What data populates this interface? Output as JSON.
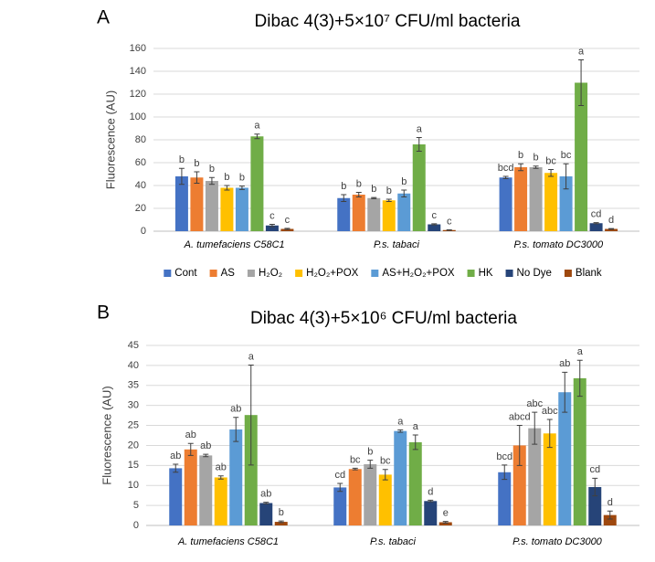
{
  "chart_data": [
    {
      "type": "bar",
      "panel_label": "A",
      "title": "Dibac 4(3)+5×10⁷ CFU/ml bacteria",
      "y_label": "Fluorescence (AU)",
      "categories": [
        "A. tumefaciens C58C1",
        "P.s. tabaci",
        "P.s. tomato DC3000"
      ],
      "ylim": [
        0,
        160
      ],
      "yticks": [
        0,
        20,
        40,
        60,
        80,
        100,
        120,
        140,
        160
      ],
      "grid": true,
      "legend": "bottom",
      "series": [
        {
          "name": "Cont",
          "color": "#4472c4",
          "values": [
            48,
            29,
            47
          ],
          "errors": [
            7,
            3,
            1
          ],
          "letters": [
            "b",
            "b",
            "bcd"
          ]
        },
        {
          "name": "AS",
          "color": "#ed7d31",
          "values": [
            47,
            32,
            56
          ],
          "errors": [
            5,
            2,
            3
          ],
          "letters": [
            "b",
            "b",
            "b"
          ]
        },
        {
          "name": "H₂O₂",
          "color": "#a5a5a5",
          "values": [
            44,
            29,
            56
          ],
          "errors": [
            3,
            0.5,
            1
          ],
          "letters": [
            "b",
            "b",
            "b"
          ]
        },
        {
          "name": "H₂O₂+POX",
          "color": "#ffc000",
          "values": [
            38,
            27,
            51
          ],
          "errors": [
            2,
            1,
            3
          ],
          "letters": [
            "b",
            "b",
            "bc"
          ]
        },
        {
          "name": "AS+H₂O₂+POX",
          "color": "#5b9bd5",
          "values": [
            38,
            33,
            48
          ],
          "errors": [
            1.5,
            3,
            11
          ],
          "letters": [
            "b",
            "b",
            "bc"
          ]
        },
        {
          "name": "HK",
          "color": "#70ad47",
          "values": [
            83,
            76,
            130
          ],
          "errors": [
            2,
            6,
            20
          ],
          "letters": [
            "a",
            "a",
            "a"
          ]
        },
        {
          "name": "No Dye",
          "color": "#264478",
          "values": [
            5,
            6,
            7
          ],
          "errors": [
            1,
            0.5,
            0.5
          ],
          "letters": [
            "c",
            "c",
            "cd"
          ]
        },
        {
          "name": "Blank",
          "color": "#9e480e",
          "values": [
            2,
            1,
            2
          ],
          "errors": [
            0.5,
            0.2,
            0.3
          ],
          "letters": [
            "c",
            "c",
            "d"
          ]
        }
      ]
    },
    {
      "type": "bar",
      "panel_label": "B",
      "title": "Dibac 4(3)+5×10⁶ CFU/ml bacteria",
      "y_label": "Fluorescence (AU)",
      "categories": [
        "A. tumefaciens C58C1",
        "P.s. tabaci",
        "P.s. tomato DC3000"
      ],
      "ylim": [
        0,
        45
      ],
      "yticks": [
        0,
        5,
        10,
        15,
        20,
        25,
        30,
        35,
        40,
        45
      ],
      "grid": true,
      "series": [
        {
          "color": "#4472c4",
          "values": [
            14.3,
            9.5,
            13.3
          ],
          "errors": [
            1,
            1,
            1.8
          ],
          "letters": [
            "ab",
            "cd",
            "bcd"
          ]
        },
        {
          "color": "#ed7d31",
          "values": [
            19,
            14.1,
            20
          ],
          "errors": [
            1.5,
            0.2,
            5
          ],
          "letters": [
            "ab",
            "bc",
            "abcd"
          ]
        },
        {
          "color": "#a5a5a5",
          "values": [
            17.5,
            15.3,
            24.3
          ],
          "errors": [
            0.3,
            1,
            4
          ],
          "letters": [
            "ab",
            "b",
            "abc"
          ]
        },
        {
          "color": "#ffc000",
          "values": [
            12,
            12.7,
            23
          ],
          "errors": [
            0.4,
            1.3,
            3.5
          ],
          "letters": [
            "ab",
            "bc",
            "abc"
          ]
        },
        {
          "color": "#5b9bd5",
          "values": [
            24,
            23.6,
            33.3
          ],
          "errors": [
            3,
            0.3,
            5
          ],
          "letters": [
            "ab",
            "a",
            "ab"
          ]
        },
        {
          "color": "#70ad47",
          "values": [
            27.6,
            20.8,
            36.8
          ],
          "errors": [
            12.5,
            1.8,
            4.5
          ],
          "letters": [
            "a",
            "a",
            "a"
          ]
        },
        {
          "color": "#264478",
          "values": [
            5.6,
            6.1,
            9.6
          ],
          "errors": [
            0.2,
            0.2,
            2.2
          ],
          "letters": [
            "ab",
            "d",
            "cd"
          ]
        },
        {
          "color": "#9e480e",
          "values": [
            0.9,
            0.8,
            2.6
          ],
          "errors": [
            0.2,
            0.2,
            1
          ],
          "letters": [
            "b",
            "e",
            "d"
          ]
        }
      ]
    }
  ]
}
